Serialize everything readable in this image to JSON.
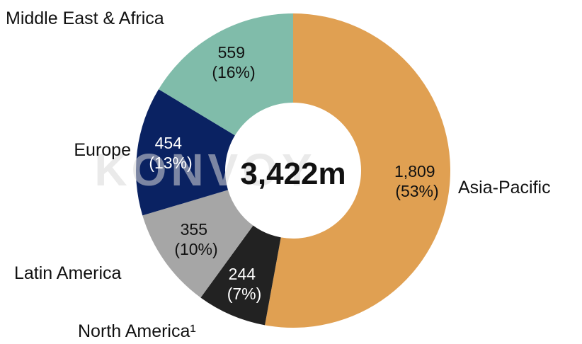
{
  "chart_data": {
    "type": "pie",
    "variant": "donut",
    "start": "12 o'clock, clockwise",
    "center_label": "3,422m",
    "watermark": "KONVOY",
    "slices": [
      {
        "label": "Asia-Pacific",
        "value": 1809,
        "value_text": "1,809",
        "percent_text": "(53%)",
        "color": "#E0A052",
        "text_color": "#111111"
      },
      {
        "label": "North America¹",
        "value": 244,
        "value_text": "244",
        "percent_text": "(7%)",
        "color": "#222222",
        "text_color": "#ffffff"
      },
      {
        "label": "Latin America",
        "value": 355,
        "value_text": "355",
        "percent_text": "(10%)",
        "color": "#A6A6A6",
        "text_color": "#111111"
      },
      {
        "label": "Europe",
        "value": 454,
        "value_text": "454",
        "percent_text": "(13%)",
        "color": "#0A2262",
        "text_color": "#ffffff"
      },
      {
        "label": "Middle East & Africa",
        "value": 559,
        "value_text": "559",
        "percent_text": "(16%)",
        "color": "#80BCAA",
        "text_color": "#111111"
      }
    ]
  }
}
